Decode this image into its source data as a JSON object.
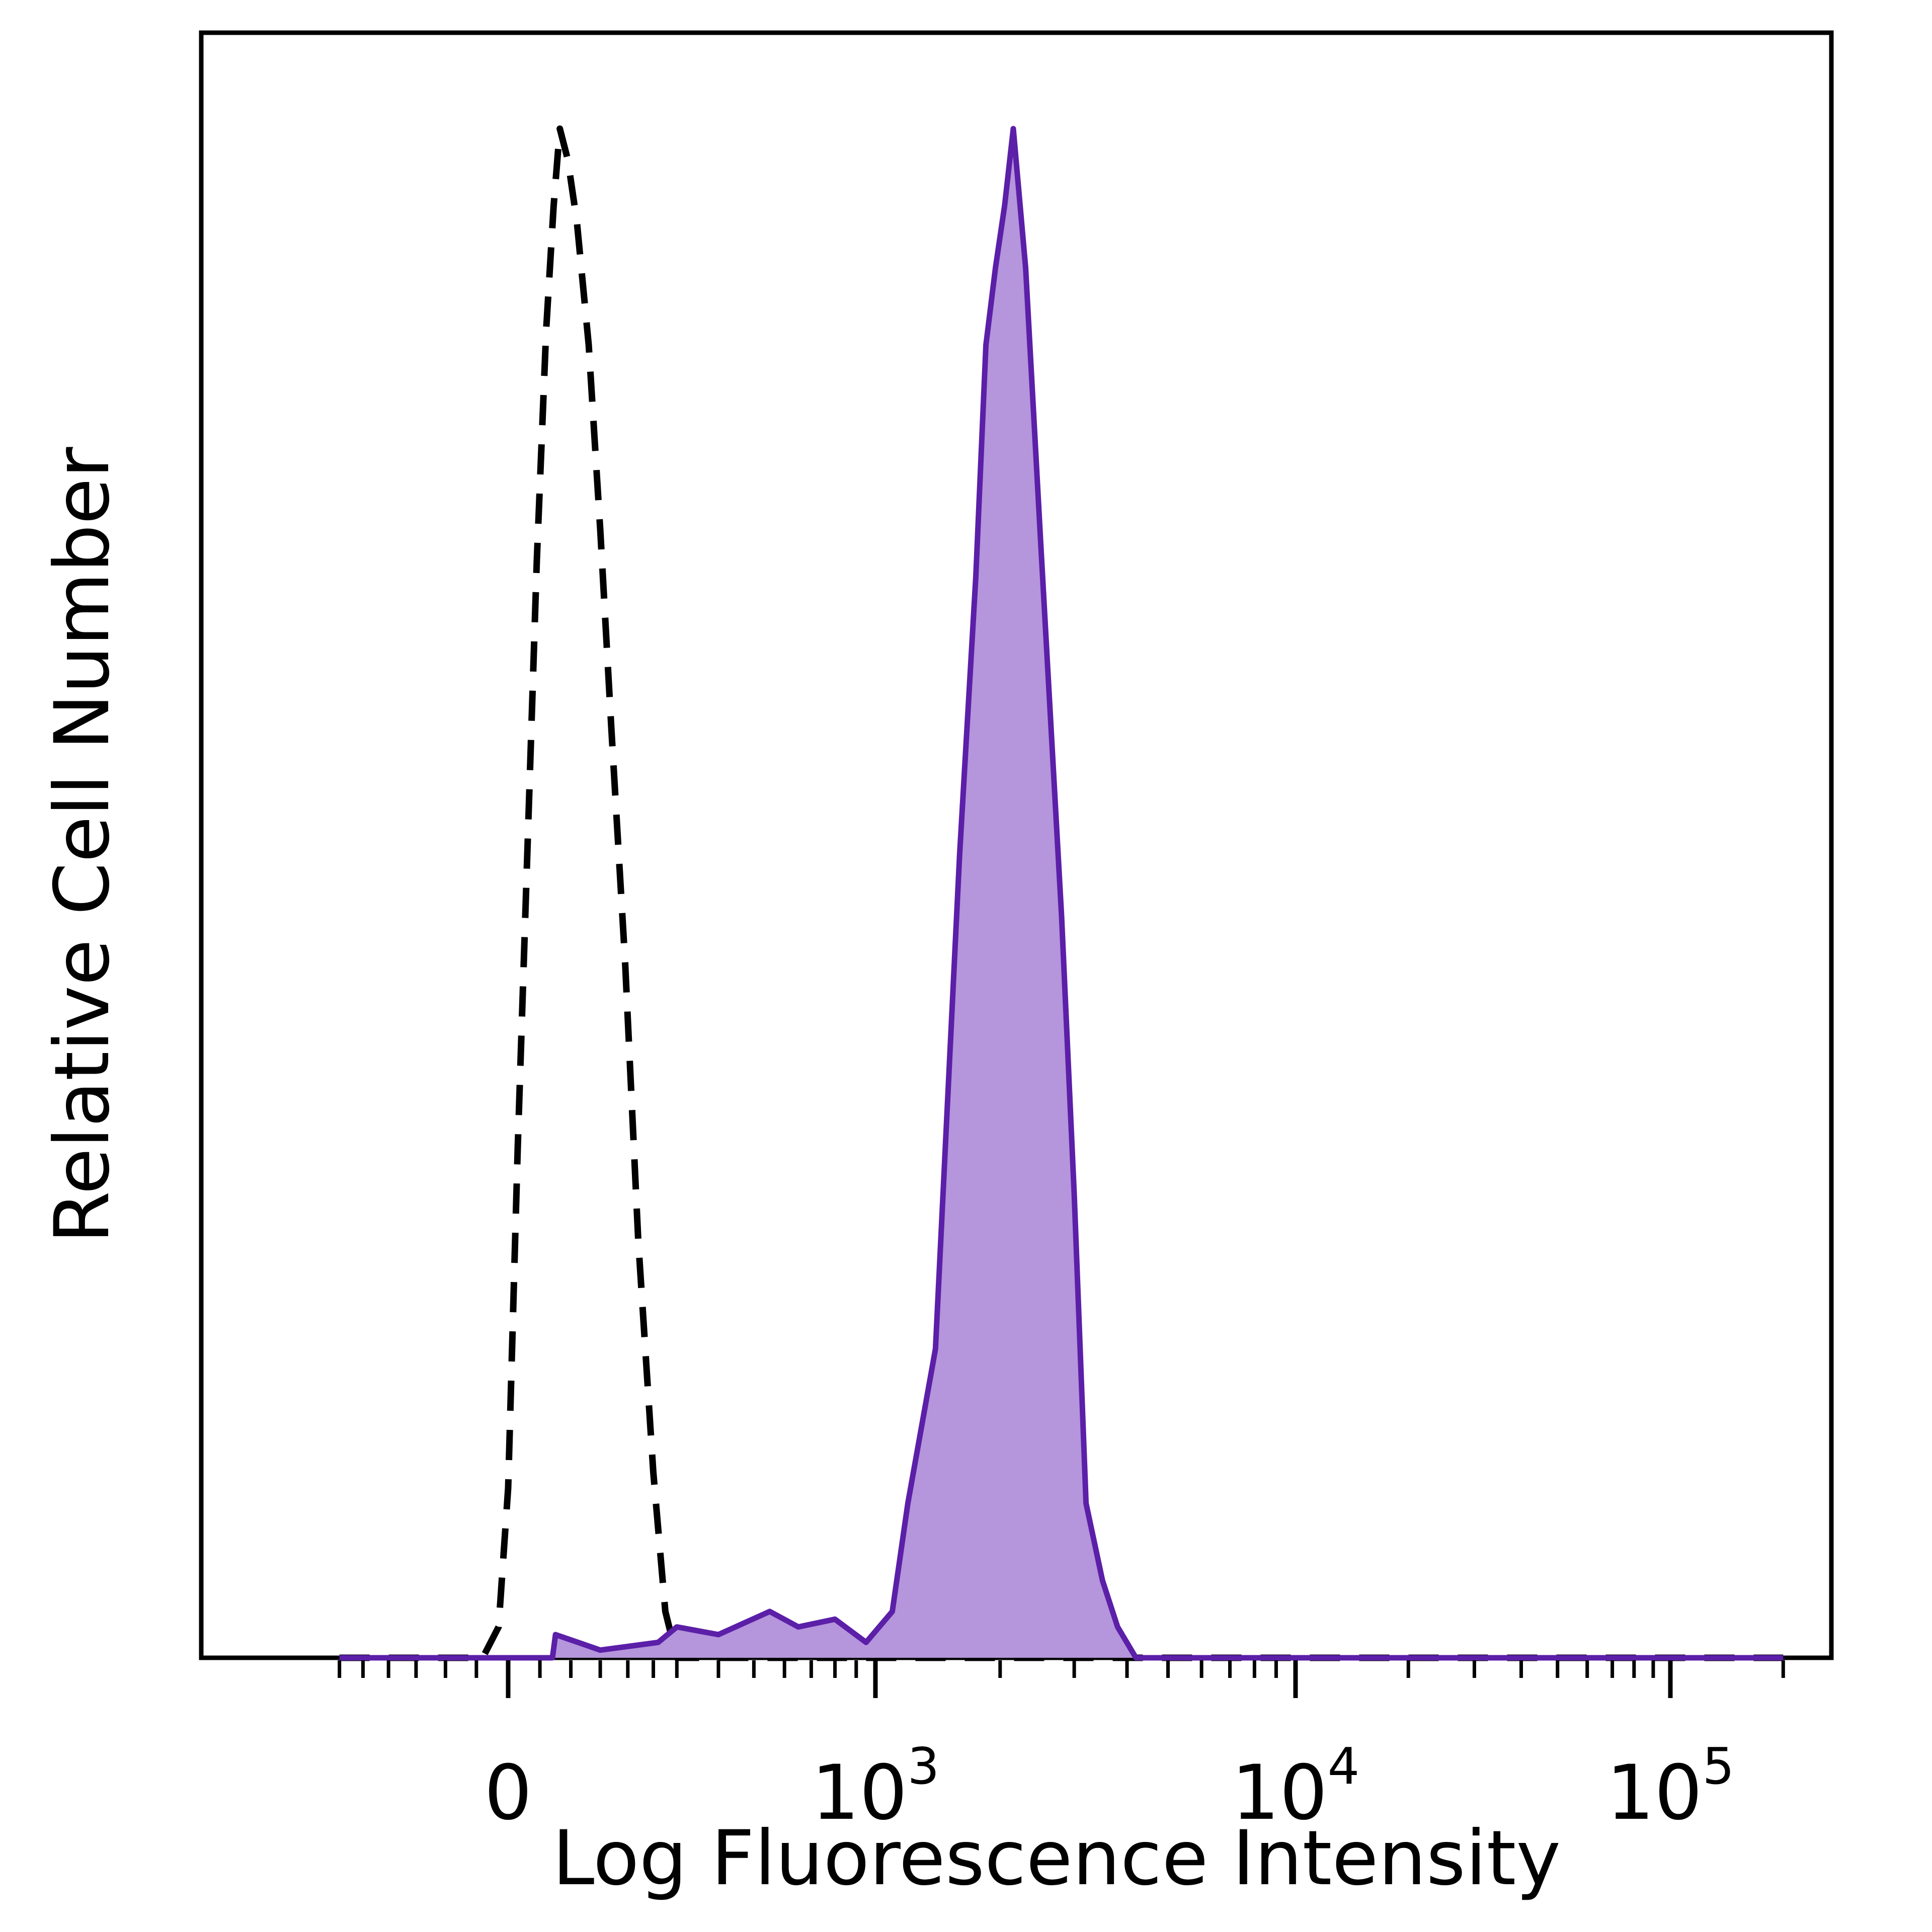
{
  "chart_data": {
    "type": "area",
    "title": "",
    "xlabel": "Log Fluorescence Intensity",
    "ylabel": "Relative Cell Number",
    "x_scale": "biexponential",
    "xlim": [
      -300,
      200000
    ],
    "ylim": [
      0,
      1.0
    ],
    "grid": false,
    "legend": "none",
    "x_ticks": [
      {
        "value": 0,
        "base": "0",
        "exp": ""
      },
      {
        "value": 1000,
        "base": "10",
        "exp": "3"
      },
      {
        "value": 10000,
        "base": "10",
        "exp": "4"
      },
      {
        "value": 100000,
        "base": "10",
        "exp": "5"
      }
    ],
    "series": [
      {
        "style": "dashed-outline",
        "color": "#000000",
        "points": [
          [
            -300,
            0
          ],
          [
            -40,
            0
          ],
          [
            -15,
            0.02
          ],
          [
            0,
            0.11
          ],
          [
            15,
            0.33
          ],
          [
            30,
            0.52
          ],
          [
            45,
            0.71
          ],
          [
            60,
            0.86
          ],
          [
            72,
            0.94
          ],
          [
            82,
            0.99
          ],
          [
            95,
            0.97
          ],
          [
            110,
            0.93
          ],
          [
            130,
            0.85
          ],
          [
            150,
            0.73
          ],
          [
            170,
            0.6
          ],
          [
            195,
            0.45
          ],
          [
            220,
            0.27
          ],
          [
            250,
            0.12
          ],
          [
            275,
            0.03
          ],
          [
            300,
            0
          ],
          [
            200000,
            0
          ]
        ]
      },
      {
        "style": "filled",
        "color": "#5b1fa8",
        "fill": "#b595db",
        "points": [
          [
            -300,
            0
          ],
          [
            70,
            0
          ],
          [
            75,
            0.015
          ],
          [
            150,
            0.005
          ],
          [
            260,
            0.01
          ],
          [
            300,
            0.02
          ],
          [
            400,
            0.015
          ],
          [
            550,
            0.03
          ],
          [
            650,
            0.02
          ],
          [
            800,
            0.025
          ],
          [
            950,
            0.01
          ],
          [
            1100,
            0.03
          ],
          [
            1200,
            0.1
          ],
          [
            1400,
            0.2
          ],
          [
            1600,
            0.52
          ],
          [
            1750,
            0.7
          ],
          [
            1850,
            0.85
          ],
          [
            1950,
            0.9
          ],
          [
            2050,
            0.94
          ],
          [
            2150,
            0.99
          ],
          [
            2300,
            0.9
          ],
          [
            2500,
            0.72
          ],
          [
            2800,
            0.48
          ],
          [
            3000,
            0.3
          ],
          [
            3200,
            0.1
          ],
          [
            3500,
            0.05
          ],
          [
            3800,
            0.02
          ],
          [
            4200,
            0
          ],
          [
            200000,
            0
          ]
        ]
      }
    ]
  }
}
